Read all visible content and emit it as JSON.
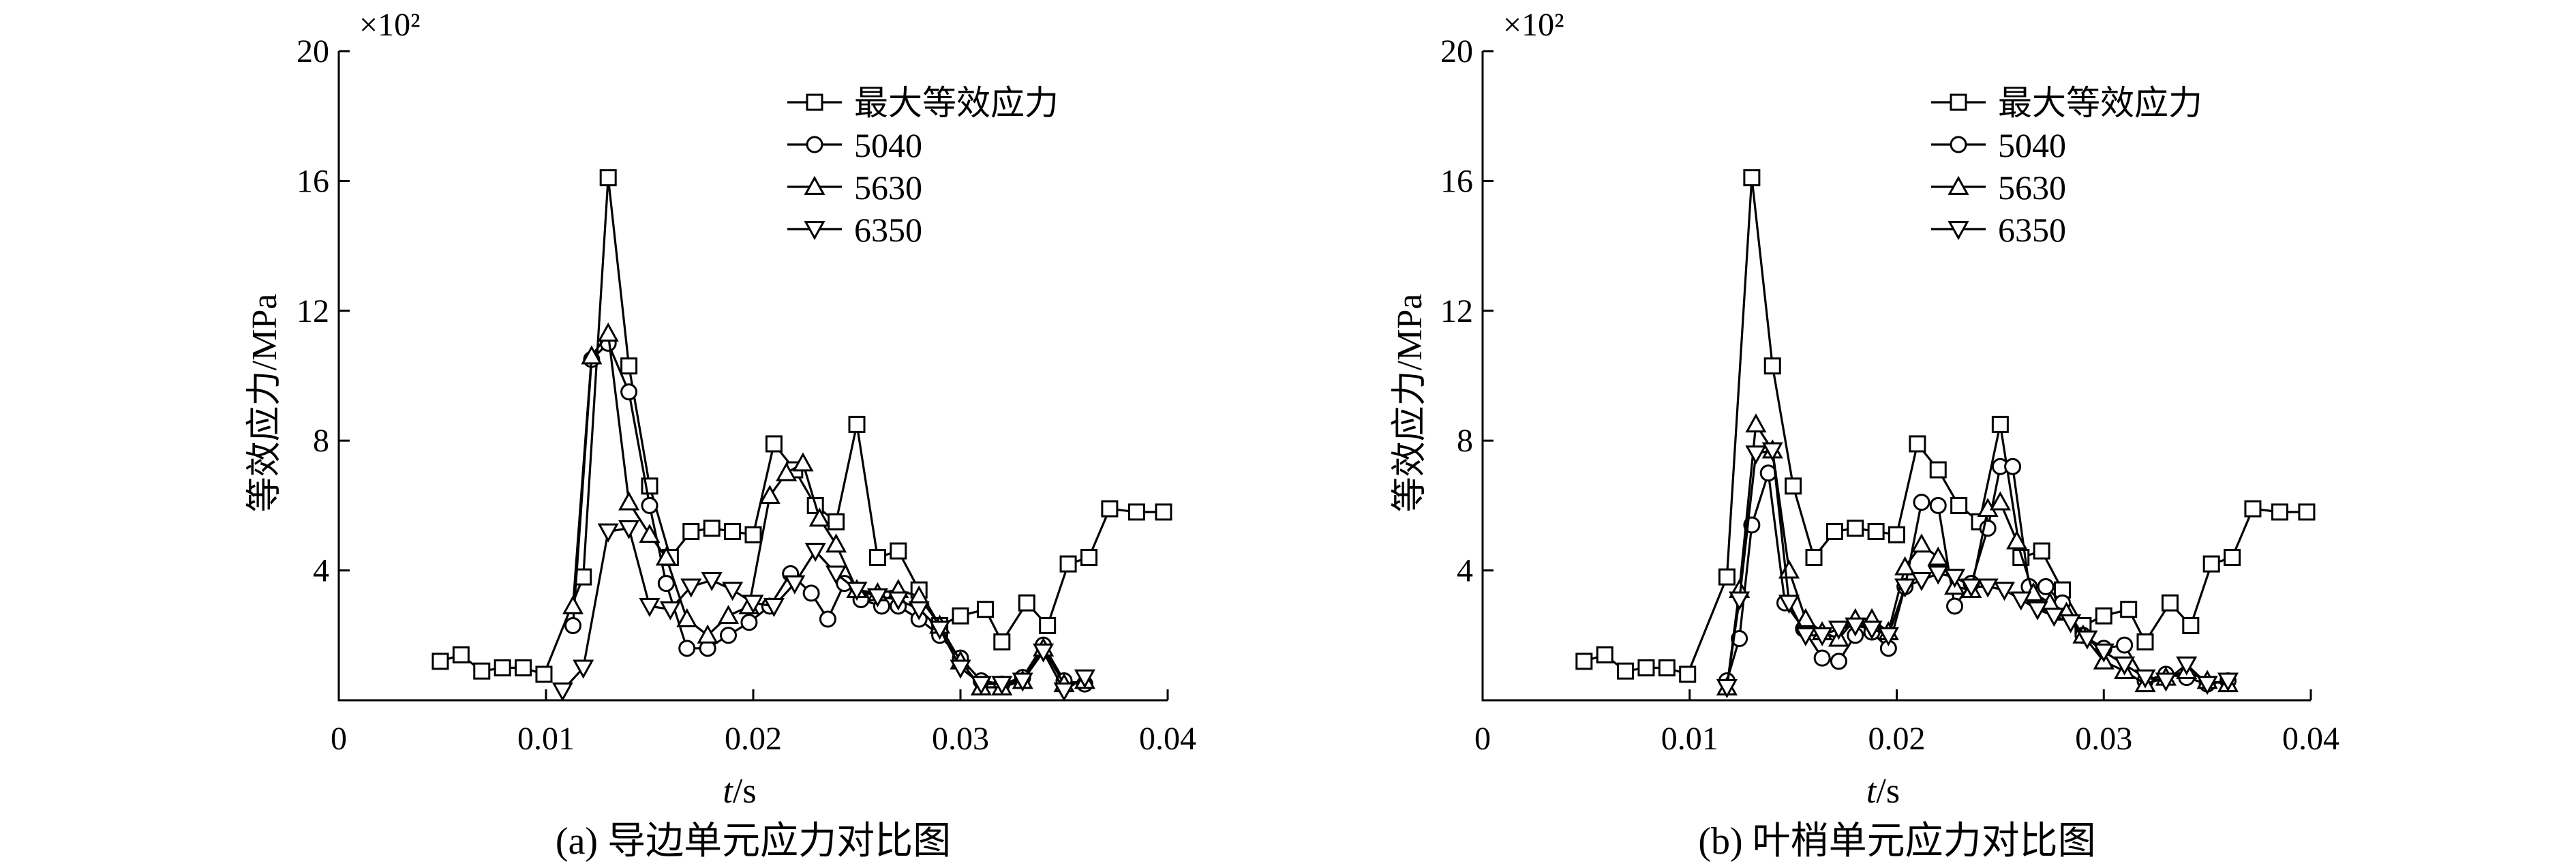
{
  "chart_data": [
    {
      "type": "line",
      "caption": "(a) 导边单元应力对比图",
      "xlabel": "t/s",
      "ylabel": "等效应力/MPa",
      "y_multiplier": "×10²",
      "xlim": [
        0,
        0.04
      ],
      "ylim": [
        0,
        20
      ],
      "x_ticks": [
        0.01,
        0.02,
        0.03,
        0.04
      ],
      "x_tick_labels": [
        "0.01",
        "0.02",
        "0.03",
        "0.04"
      ],
      "y_ticks": [
        4,
        8,
        12,
        16,
        20
      ],
      "y_tick_labels": [
        "4",
        "8",
        "12",
        "16",
        "20"
      ],
      "origin_label": "0",
      "legend_position": "top-right",
      "series": [
        {
          "name": "最大等效应力",
          "marker": "square",
          "x": [
            0.0049,
            0.0059,
            0.0069,
            0.0079,
            0.0089,
            0.0099,
            0.0118,
            0.013,
            0.014,
            0.015,
            0.016,
            0.017,
            0.018,
            0.019,
            0.02,
            0.021,
            0.022,
            0.023,
            0.024,
            0.025,
            0.026,
            0.027,
            0.028,
            0.029,
            0.03,
            0.0312,
            0.032,
            0.0332,
            0.0342,
            0.0352,
            0.0362,
            0.0372,
            0.0385,
            0.0398
          ],
          "y": [
            1.2,
            1.4,
            0.9,
            1.0,
            1.0,
            0.8,
            3.8,
            16.1,
            10.3,
            6.6,
            4.4,
            5.2,
            5.3,
            5.2,
            5.1,
            7.9,
            7.1,
            6.0,
            5.5,
            8.5,
            4.4,
            4.6,
            3.4,
            2.3,
            2.6,
            2.8,
            1.8,
            3.0,
            2.3,
            4.2,
            4.4,
            5.9,
            5.8,
            5.8
          ]
        },
        {
          "name": "5040",
          "marker": "circle",
          "x": [
            0.0113,
            0.0122,
            0.013,
            0.014,
            0.015,
            0.0158,
            0.0168,
            0.0178,
            0.0188,
            0.0198,
            0.0208,
            0.0218,
            0.0228,
            0.0236,
            0.0244,
            0.0252,
            0.0262,
            0.027,
            0.028,
            0.029,
            0.03,
            0.031,
            0.032,
            0.033,
            0.034,
            0.035,
            0.036
          ],
          "y": [
            2.3,
            10.5,
            11.0,
            9.5,
            6.0,
            3.6,
            1.6,
            1.6,
            2.0,
            2.4,
            2.9,
            3.9,
            3.3,
            2.5,
            3.6,
            3.1,
            2.9,
            2.9,
            2.5,
            2.0,
            1.3,
            0.6,
            0.5,
            0.7,
            1.7,
            0.6,
            0.5
          ]
        },
        {
          "name": "5630",
          "marker": "triangle-up",
          "x": [
            0.0113,
            0.0122,
            0.013,
            0.014,
            0.015,
            0.0158,
            0.0168,
            0.0178,
            0.0188,
            0.0198,
            0.0208,
            0.0216,
            0.0224,
            0.0232,
            0.024,
            0.025,
            0.026,
            0.027,
            0.028,
            0.029,
            0.03,
            0.031,
            0.032,
            0.033,
            0.034,
            0.035,
            0.036
          ],
          "y": [
            2.9,
            10.6,
            11.3,
            6.1,
            5.1,
            4.4,
            2.5,
            2.0,
            2.6,
            2.9,
            6.3,
            7.0,
            7.3,
            5.6,
            4.8,
            3.4,
            3.3,
            3.4,
            3.2,
            2.3,
            1.2,
            0.4,
            0.4,
            0.6,
            1.6,
            0.5,
            0.6
          ]
        },
        {
          "name": "6350",
          "marker": "triangle-down",
          "x": [
            0.0108,
            0.0118,
            0.013,
            0.014,
            0.015,
            0.016,
            0.017,
            0.018,
            0.019,
            0.02,
            0.021,
            0.022,
            0.023,
            0.024,
            0.025,
            0.026,
            0.027,
            0.028,
            0.029,
            0.03,
            0.031,
            0.032,
            0.033,
            0.034,
            0.035,
            0.036
          ],
          "y": [
            0.3,
            1.0,
            5.2,
            5.3,
            2.9,
            2.8,
            3.5,
            3.7,
            3.4,
            3.0,
            2.9,
            3.6,
            4.6,
            3.9,
            3.4,
            3.2,
            3.1,
            2.8,
            2.2,
            1.0,
            0.5,
            0.5,
            0.6,
            1.5,
            0.3,
            0.7
          ]
        }
      ]
    },
    {
      "type": "line",
      "caption": "(b) 叶梢单元应力对比图",
      "xlabel": "t/s",
      "ylabel": "等效应力/MPa",
      "y_multiplier": "×10²",
      "xlim": [
        0,
        0.04
      ],
      "ylim": [
        0,
        20
      ],
      "x_ticks": [
        0.01,
        0.02,
        0.03,
        0.04
      ],
      "x_tick_labels": [
        "0.01",
        "0.02",
        "0.03",
        "0.04"
      ],
      "y_ticks": [
        4,
        8,
        12,
        16,
        20
      ],
      "y_tick_labels": [
        "4",
        "8",
        "12",
        "16",
        "20"
      ],
      "origin_label": "0",
      "legend_position": "top-right",
      "series": [
        {
          "name": "最大等效应力",
          "marker": "square",
          "x": [
            0.0049,
            0.0059,
            0.0069,
            0.0079,
            0.0089,
            0.0099,
            0.0118,
            0.013,
            0.014,
            0.015,
            0.016,
            0.017,
            0.018,
            0.019,
            0.02,
            0.021,
            0.022,
            0.023,
            0.024,
            0.025,
            0.026,
            0.027,
            0.028,
            0.029,
            0.03,
            0.0312,
            0.032,
            0.0332,
            0.0342,
            0.0352,
            0.0362,
            0.0372,
            0.0385,
            0.0398
          ],
          "y": [
            1.2,
            1.4,
            0.9,
            1.0,
            1.0,
            0.8,
            3.8,
            16.1,
            10.3,
            6.6,
            4.4,
            5.2,
            5.3,
            5.2,
            5.1,
            7.9,
            7.1,
            6.0,
            5.5,
            8.5,
            4.4,
            4.6,
            3.4,
            2.3,
            2.6,
            2.8,
            1.8,
            3.0,
            2.3,
            4.2,
            4.4,
            5.9,
            5.8,
            5.8
          ]
        },
        {
          "name": "5040",
          "marker": "circle",
          "x": [
            0.0118,
            0.0124,
            0.013,
            0.0138,
            0.0146,
            0.0155,
            0.0164,
            0.0172,
            0.018,
            0.0188,
            0.0196,
            0.0204,
            0.0212,
            0.022,
            0.0228,
            0.0236,
            0.0244,
            0.025,
            0.0256,
            0.0264,
            0.0272,
            0.028,
            0.029,
            0.03,
            0.031,
            0.032,
            0.033,
            0.034,
            0.035,
            0.036
          ],
          "y": [
            0.6,
            1.9,
            5.4,
            7.0,
            3.0,
            2.2,
            1.3,
            1.2,
            2.0,
            2.1,
            1.6,
            3.5,
            6.1,
            6.0,
            2.9,
            3.6,
            5.3,
            7.2,
            7.2,
            3.5,
            3.5,
            3.0,
            2.0,
            1.6,
            1.7,
            0.6,
            0.8,
            0.7,
            0.5,
            0.6
          ]
        },
        {
          "name": "5630",
          "marker": "triangle-up",
          "x": [
            0.0118,
            0.0124,
            0.0132,
            0.014,
            0.0148,
            0.0156,
            0.0164,
            0.0172,
            0.018,
            0.0188,
            0.0196,
            0.0204,
            0.0212,
            0.022,
            0.0228,
            0.0236,
            0.0244,
            0.025,
            0.0258,
            0.0266,
            0.0274,
            0.0282,
            0.029,
            0.03,
            0.031,
            0.032,
            0.033,
            0.034,
            0.035,
            0.036
          ],
          "y": [
            0.4,
            3.4,
            8.5,
            7.7,
            4.0,
            2.5,
            2.1,
            1.9,
            2.5,
            2.5,
            2.1,
            4.1,
            4.8,
            4.4,
            3.5,
            3.4,
            5.9,
            6.1,
            4.9,
            3.3,
            3.0,
            2.7,
            2.0,
            1.2,
            0.9,
            0.5,
            0.7,
            0.9,
            0.6,
            0.5
          ]
        },
        {
          "name": "6350",
          "marker": "triangle-down",
          "x": [
            0.0118,
            0.0124,
            0.0132,
            0.014,
            0.0148,
            0.0156,
            0.0164,
            0.0172,
            0.018,
            0.0188,
            0.0196,
            0.0204,
            0.0212,
            0.022,
            0.0228,
            0.0236,
            0.0244,
            0.0252,
            0.026,
            0.0268,
            0.0276,
            0.0284,
            0.0292,
            0.03,
            0.031,
            0.032,
            0.033,
            0.034,
            0.035,
            0.036
          ],
          "y": [
            0.4,
            3.1,
            7.6,
            7.7,
            3.0,
            2.0,
            2.0,
            2.2,
            2.3,
            2.2,
            2.0,
            3.5,
            3.7,
            3.9,
            3.8,
            3.5,
            3.5,
            3.4,
            3.1,
            2.8,
            2.6,
            2.4,
            1.9,
            1.5,
            1.1,
            0.7,
            0.6,
            1.1,
            0.5,
            0.6
          ]
        }
      ]
    }
  ]
}
